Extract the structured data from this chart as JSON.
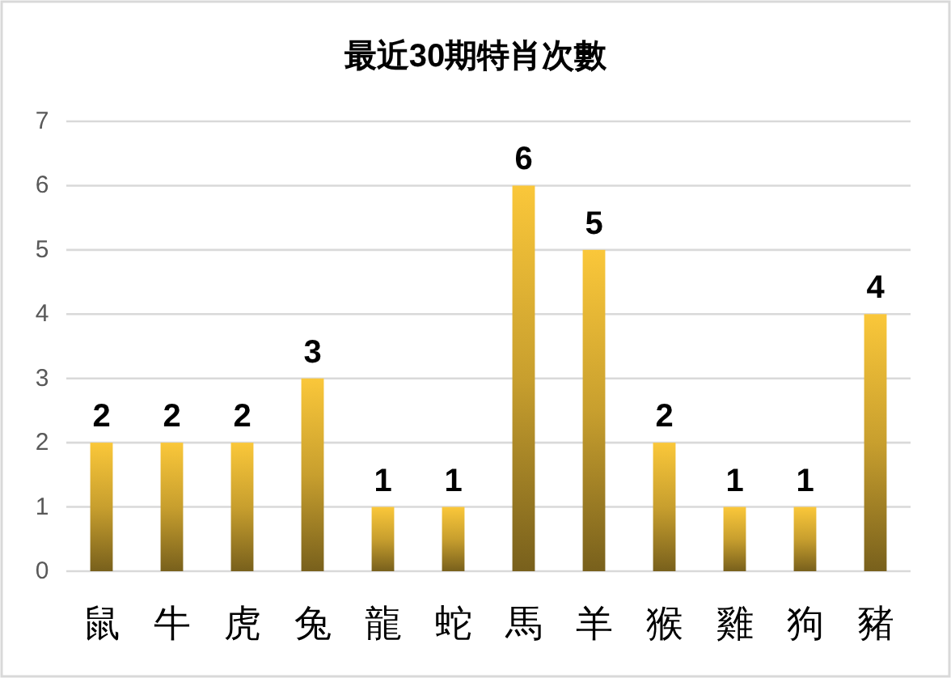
{
  "chart_data": {
    "type": "bar",
    "title": "最近30期特肖次數",
    "categories": [
      "鼠",
      "牛",
      "虎",
      "兔",
      "龍",
      "蛇",
      "馬",
      "羊",
      "猴",
      "雞",
      "狗",
      "豬"
    ],
    "values": [
      2,
      2,
      2,
      3,
      1,
      1,
      6,
      5,
      2,
      1,
      1,
      4
    ],
    "color": "#fac73a",
    "ylim": [
      0,
      7
    ],
    "yticks": [
      0,
      1,
      2,
      3,
      4,
      5,
      6,
      7
    ],
    "grid": "y",
    "data_labels": true
  }
}
